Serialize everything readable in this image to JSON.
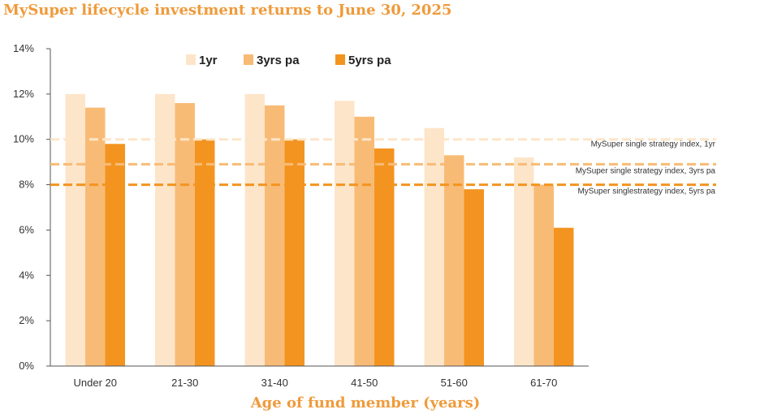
{
  "chart_data": {
    "type": "bar",
    "title": "MySuper lifecycle investment returns to June 30, 2025",
    "xlabel": "Age of fund member (years)",
    "ylabel": "",
    "ylim": [
      0,
      14
    ],
    "yticks": [
      "0%",
      "2%",
      "4%",
      "6%",
      "8%",
      "10%",
      "12%",
      "14%"
    ],
    "categories": [
      "Under 20",
      "21-30",
      "31-40",
      "41-50",
      "51-60",
      "61-70"
    ],
    "series": [
      {
        "name": "1yr",
        "color": "#fde5c9",
        "values": [
          12.0,
          12.0,
          12.0,
          11.7,
          10.5,
          9.2
        ]
      },
      {
        "name": "3yrs pa",
        "color": "#f8bb76",
        "values": [
          11.4,
          11.6,
          11.5,
          11.0,
          9.3,
          8.0
        ]
      },
      {
        "name": "5yrs pa",
        "color": "#f39420",
        "values": [
          9.8,
          10.0,
          10.0,
          9.6,
          7.8,
          6.1
        ]
      }
    ],
    "reference_lines": [
      {
        "label": "MySuper single strategy index, 1yr",
        "value": 10.0,
        "color": "#fde5c9"
      },
      {
        "label": "MySuper single strategy index, 3yrs pa",
        "value": 8.9,
        "color": "#f8bb76"
      },
      {
        "label": "MySuper singlestrategy index, 5yrs pa",
        "value": 8.0,
        "color": "#f39420"
      }
    ],
    "legend_position": "top",
    "grid": false
  }
}
